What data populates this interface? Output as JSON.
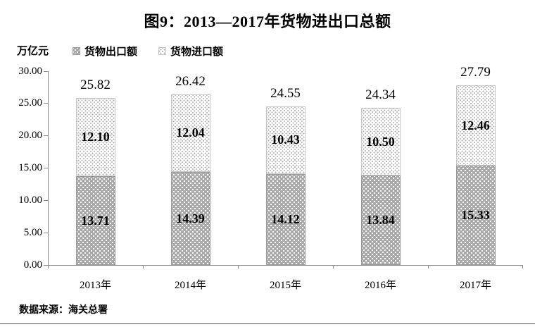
{
  "title": "图9：2013—2017年货物进出口总额",
  "unit_label": "万亿元",
  "legend": {
    "export_label": "货物出口额",
    "import_label": "货物进口额"
  },
  "source": "数据来源：海关总署",
  "chart_data": {
    "type": "bar",
    "stacked": true,
    "title": "图9：2013—2017年货物进出口总额",
    "ylabel": "万亿元",
    "categories": [
      "2013年",
      "2014年",
      "2015年",
      "2016年",
      "2017年"
    ],
    "series": [
      {
        "name": "货物出口额",
        "values": [
          13.71,
          14.39,
          14.12,
          13.84,
          15.33
        ]
      },
      {
        "name": "货物进口额",
        "values": [
          12.1,
          12.04,
          10.43,
          10.5,
          12.46
        ]
      }
    ],
    "totals": [
      25.82,
      26.42,
      24.55,
      24.34,
      27.79
    ],
    "ylim": [
      0,
      30
    ],
    "ytick_step": 5,
    "ytick_labels": [
      "0.00",
      "5.00",
      "10.00",
      "15.00",
      "20.00",
      "25.00",
      "30.00"
    ],
    "legend_position": "top-left",
    "grid": false
  },
  "colors": {
    "export_fill": "#a9a9a9",
    "import_fill": "#ffffff",
    "axis": "#8c8c8c",
    "text": "#000000"
  }
}
